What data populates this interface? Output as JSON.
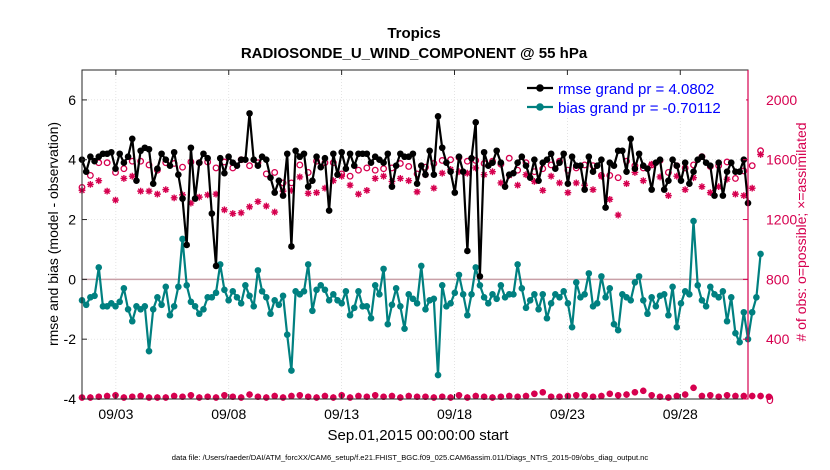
{
  "chart_data": {
    "type": "line",
    "title": "Tropics",
    "subtitle": "RADIOSONDE_U_WIND_COMPONENT @ 55 hPa",
    "xlabel": "Sep.01,2015 00:00:00 start",
    "ylabel": "rmse and bias (model - observation)",
    "y2label": "# of obs: o=possible; ×=assimilated",
    "footnote": "data file: /Users/raeder/DAI/ATM_forcXX/CAM6_setup/f.e21.FHIST_BGC.f09_025.CAM6assim.011/Diags_NTrS_2015-09/obs_diag_output.nc",
    "xlim": [
      1.5,
      31.0
    ],
    "ylim": [
      -4,
      7
    ],
    "y2lim": [
      0,
      2200
    ],
    "x_ticks": [
      3,
      8,
      13,
      18,
      23,
      28
    ],
    "x_tick_labels": [
      "09/03",
      "09/08",
      "09/13",
      "09/18",
      "09/23",
      "09/28"
    ],
    "y_ticks": [
      -4,
      -2,
      0,
      2,
      4,
      6
    ],
    "y_tick_labels": [
      "-4",
      "-2",
      "0",
      "2",
      "4",
      "6"
    ],
    "y2_ticks": [
      0,
      400,
      800,
      1200,
      1600,
      2000
    ],
    "y2_tick_labels": [
      "0",
      "400",
      "800",
      "1200",
      "1600",
      "2000"
    ],
    "zero_line": 0,
    "legend_position": "top-right",
    "colors": {
      "rmse": "#000000",
      "bias": "#008080",
      "obs": "#d6004f",
      "legend_text": "#0000ff",
      "zero_line": "#c9a0a8",
      "grid": "#d9d9d9"
    },
    "series": [
      {
        "name": "rmse grand pr = 4.0802",
        "axis": "left",
        "values": [
          4.0,
          3.6,
          4.1,
          3.95,
          4.1,
          4.2,
          4.2,
          4.25,
          3.7,
          4.2,
          3.9,
          4.1,
          4.7,
          3.3,
          4.3,
          4.4,
          4.35,
          3.2,
          3.7,
          4.2,
          4.0,
          3.8,
          4.25,
          3.5,
          2.7,
          1.15,
          4.4,
          2.7,
          3.9,
          4.2,
          4.05,
          2.2,
          0.45,
          4.05,
          3.55,
          4.1,
          3.9,
          3.8,
          4.0,
          4.0,
          5.55,
          4.0,
          3.8,
          4.1,
          4.0,
          3.4,
          2.9,
          3.3,
          2.8,
          4.2,
          1.1,
          4.3,
          4.1,
          4.2,
          3.1,
          3.3,
          4.1,
          3.75,
          4.05,
          2.3,
          4.2,
          3.5,
          4.25,
          3.7,
          4.2,
          3.8,
          4.2,
          4.2,
          4.2,
          3.9,
          4.1,
          4.0,
          3.9,
          4.2,
          3.1,
          3.8,
          4.2,
          4.1,
          4.1,
          4.2,
          3.2,
          3.8,
          3.5,
          4.3,
          3.5,
          5.45,
          4.4,
          3.9,
          3.6,
          2.9,
          4.1,
          3.6,
          0.95,
          4.05,
          5.25,
          0.1,
          4.25,
          3.8,
          3.9,
          4.3,
          3.9,
          3.1,
          3.5,
          3.55,
          3.9,
          4.1,
          3.8,
          3.4,
          4.0,
          3.3,
          3.9,
          4.0,
          4.2,
          3.7,
          3.9,
          4.2,
          3.2,
          4.1,
          3.8,
          3.8,
          3.0,
          4.1,
          3.6,
          3.8,
          4.0,
          2.4,
          3.9,
          3.8,
          4.3,
          4.3,
          3.6,
          4.7,
          3.7,
          4.2,
          3.8,
          3.7,
          3.0,
          3.9,
          4.0,
          3.0,
          3.3,
          4.0,
          3.8,
          3.3,
          3.9,
          3.2,
          3.6,
          4.0,
          4.1,
          3.9,
          3.8,
          2.8,
          3.9,
          2.8,
          3.6,
          3.9,
          3.6,
          3.6,
          4.0,
          2.55
        ]
      },
      {
        "name": "bias grand pr = -0.70112",
        "axis": "left",
        "values": [
          -0.7,
          -0.85,
          -0.6,
          -0.55,
          0.4,
          -0.9,
          -0.9,
          -0.8,
          -0.9,
          -0.75,
          -0.3,
          -1.0,
          -1.4,
          -0.9,
          -1.0,
          -0.9,
          -2.4,
          -1.0,
          -0.6,
          -0.85,
          -0.25,
          -1.2,
          -0.9,
          -0.25,
          1.35,
          -0.2,
          -0.75,
          -0.9,
          -1.15,
          -1.0,
          -0.6,
          -0.6,
          -0.45,
          0.5,
          -0.35,
          -0.7,
          -0.4,
          -0.6,
          -0.8,
          -0.2,
          -0.55,
          -0.9,
          0.3,
          -0.4,
          -0.6,
          -1.15,
          -0.7,
          -0.85,
          -0.55,
          -1.85,
          -3.05,
          -0.4,
          -0.5,
          -0.4,
          0.5,
          -1.05,
          -0.35,
          -0.2,
          -0.35,
          -0.7,
          -0.5,
          -0.7,
          -0.8,
          -0.4,
          -1.2,
          -0.95,
          -0.4,
          -0.9,
          -0.9,
          -1.3,
          -0.2,
          -0.5,
          0.35,
          -1.5,
          -0.85,
          -0.3,
          -0.9,
          -1.65,
          -0.5,
          -0.65,
          -0.8,
          0.45,
          -1.0,
          -0.7,
          -0.65,
          -3.2,
          -0.2,
          -0.9,
          -0.8,
          -0.45,
          0.15,
          -0.5,
          -1.2,
          -0.5,
          0.4,
          -0.2,
          -0.6,
          -0.8,
          -0.5,
          -0.65,
          -0.2,
          -0.6,
          -0.5,
          -0.5,
          0.5,
          -0.3,
          -0.95,
          -0.7,
          -0.5,
          -1.0,
          -0.5,
          -1.3,
          -0.8,
          -0.5,
          -0.6,
          -0.4,
          -0.8,
          -1.6,
          -0.1,
          -0.6,
          -0.5,
          0.2,
          -0.9,
          -0.8,
          0.1,
          -0.6,
          -0.3,
          -1.5,
          -1.7,
          -0.5,
          -0.6,
          -0.7,
          -0.1,
          0.1,
          -0.7,
          -1.15,
          -0.6,
          -0.9,
          -0.55,
          -0.5,
          -1.2,
          -0.25,
          -1.6,
          -0.8,
          -0.4,
          -0.5,
          1.95,
          -0.2,
          -0.7,
          -0.9,
          -0.25,
          -0.5,
          -0.6,
          -0.4,
          -1.4,
          -0.6,
          -1.8,
          -2.1,
          -1.1,
          -2.0,
          -1.1,
          -0.6,
          0.85
        ]
      },
      {
        "name": "obs possible",
        "axis": "right",
        "values": [
          1415,
          1495,
          1495,
          1560,
          1580,
          1580,
          1580,
          1555,
          1515,
          1595,
          1540,
          1600,
          1590,
          1485,
          1590,
          1550,
          1565,
          1560,
          1530,
          1595,
          1580,
          1580,
          1575,
          1545,
          1550,
          1540,
          1585,
          1565,
          1580,
          1490,
          1585,
          1490,
          1545,
          1550,
          1585,
          1555,
          1545,
          1600,
          1600,
          1580,
          1560,
          1585,
          1580,
          1525,
          1505,
          1455,
          1515,
          1480,
          1445,
          1455,
          1445,
          1560,
          1565,
          1590,
          1515,
          1595,
          1590,
          1560,
          1580,
          1560,
          1580,
          1470,
          1505,
          1570,
          1490,
          1575,
          1530,
          1555,
          1545,
          1540,
          1530,
          1535,
          1540,
          1530,
          1545,
          1595,
          1575,
          1535,
          1555,
          1545,
          1505,
          1565,
          1550,
          1520,
          1575,
          1540,
          1595,
          1590,
          1600,
          1585,
          1615,
          1600,
          1590,
          1600,
          1595,
          1575,
          1575,
          1605,
          1590,
          1600,
          1570,
          1565,
          1610,
          1595,
          1530,
          1545,
          1580,
          1510,
          1520,
          1500,
          1540,
          1605,
          1565,
          1610,
          1590,
          1560,
          1530,
          1565,
          1545,
          1525,
          1565,
          1555,
          1560,
          1530,
          1495,
          1595,
          1495,
          1580,
          1480,
          1550,
          1590,
          1600,
          1560,
          1575,
          1545,
          1640,
          1565,
          1640,
          1595,
          1595,
          1515,
          1585,
          1560,
          1600,
          1545,
          1520,
          1565,
          1575,
          1620,
          1595,
          1555,
          1545,
          1560,
          1580,
          1585,
          1545,
          1475,
          1495,
          1525,
          1595,
          1560,
          1590,
          1660,
          1745
        ]
      },
      {
        "name": "obs assimilated",
        "axis": "right",
        "values": [
          1395,
          1370,
          1435,
          1445,
          1460,
          1460,
          1390,
          1430,
          1330,
          1385,
          1475,
          1395,
          1490,
          1395,
          1390,
          1420,
          1390,
          1360,
          1370,
          1300,
          1400,
          1350,
          1345,
          1335,
          1365,
          1380,
          1310,
          1335,
          1350,
          1355,
          1365,
          1350,
          1370,
          1335,
          1265,
          1270,
          1240,
          1245,
          1245,
          1290,
          1285,
          1270,
          1320,
          1280,
          1290,
          1290,
          1250,
          1310,
          1390,
          1400,
          1395,
          1400,
          1485,
          1395,
          1375,
          1395,
          1380,
          1405,
          1410,
          1460,
          1460,
          1525,
          1490,
          1505,
          1430,
          1490,
          1370,
          1310,
          1395,
          1400,
          1475,
          1410,
          1490,
          1385,
          1455,
          1505,
          1475,
          1405,
          1460,
          1380,
          1385,
          1445,
          1500,
          1460,
          1410,
          1435,
          1510,
          1450,
          1535,
          1525,
          1520,
          1470,
          1510,
          1505,
          1545,
          1480,
          1500,
          1555,
          1520,
          1490,
          1445,
          1470,
          1495,
          1485,
          1430,
          1440,
          1500,
          1490,
          1455,
          1465,
          1395,
          1525,
          1490,
          1460,
          1445,
          1440,
          1380,
          1420,
          1445,
          1375,
          1430,
          1385,
          1400,
          1455,
          1490,
          1425,
          1335,
          1270,
          1230,
          1320,
          1440,
          1455,
          1515,
          1500,
          1460,
          1460,
          1570,
          1500,
          1485,
          1470,
          1360,
          1390,
          1490,
          1470,
          1400,
          1380,
          1480,
          1480,
          1420,
          1460,
          1380,
          1435,
          1420,
          1380,
          1470,
          1430,
          1370,
          1440,
          1360,
          1380,
          1410,
          1460,
          1635,
          1630
        ]
      },
      {
        "name": "obs count near zero",
        "axis": "right",
        "values": [
          10,
          15,
          10,
          20,
          15,
          30,
          20,
          10,
          25,
          15,
          10,
          20,
          15,
          10,
          20,
          15,
          10,
          15,
          10,
          20,
          10,
          25,
          20,
          30,
          15,
          10,
          25,
          20,
          10,
          15,
          15,
          20,
          10,
          10,
          25,
          10,
          15,
          20,
          10,
          15,
          30,
          25,
          15,
          20,
          10,
          25,
          20,
          15,
          10,
          10,
          20,
          15,
          25,
          10,
          15,
          20,
          10,
          15,
          20,
          15,
          10,
          20,
          25,
          15,
          10,
          15,
          20,
          10,
          15,
          10,
          25,
          20,
          15,
          10,
          20,
          15,
          10,
          15,
          20,
          25,
          15,
          10,
          15,
          20,
          10,
          30,
          15,
          20,
          10,
          15,
          25,
          20,
          10,
          15,
          20,
          10,
          15,
          20,
          10,
          25,
          15,
          20,
          20,
          10,
          15,
          30,
          20,
          15,
          35,
          10,
          45,
          30,
          15,
          20,
          15,
          25,
          20,
          20,
          25,
          10,
          25,
          20,
          15,
          15,
          20,
          25,
          35,
          30,
          25,
          20,
          30,
          20,
          45,
          40,
          55,
          50,
          25,
          20,
          15,
          20,
          10,
          15,
          20,
          25,
          30,
          55,
          75,
          35,
          20,
          15,
          25,
          20,
          15,
          20,
          25,
          15,
          20,
          15,
          20,
          10,
          20,
          15,
          20,
          25,
          15,
          25
        ]
      }
    ]
  }
}
